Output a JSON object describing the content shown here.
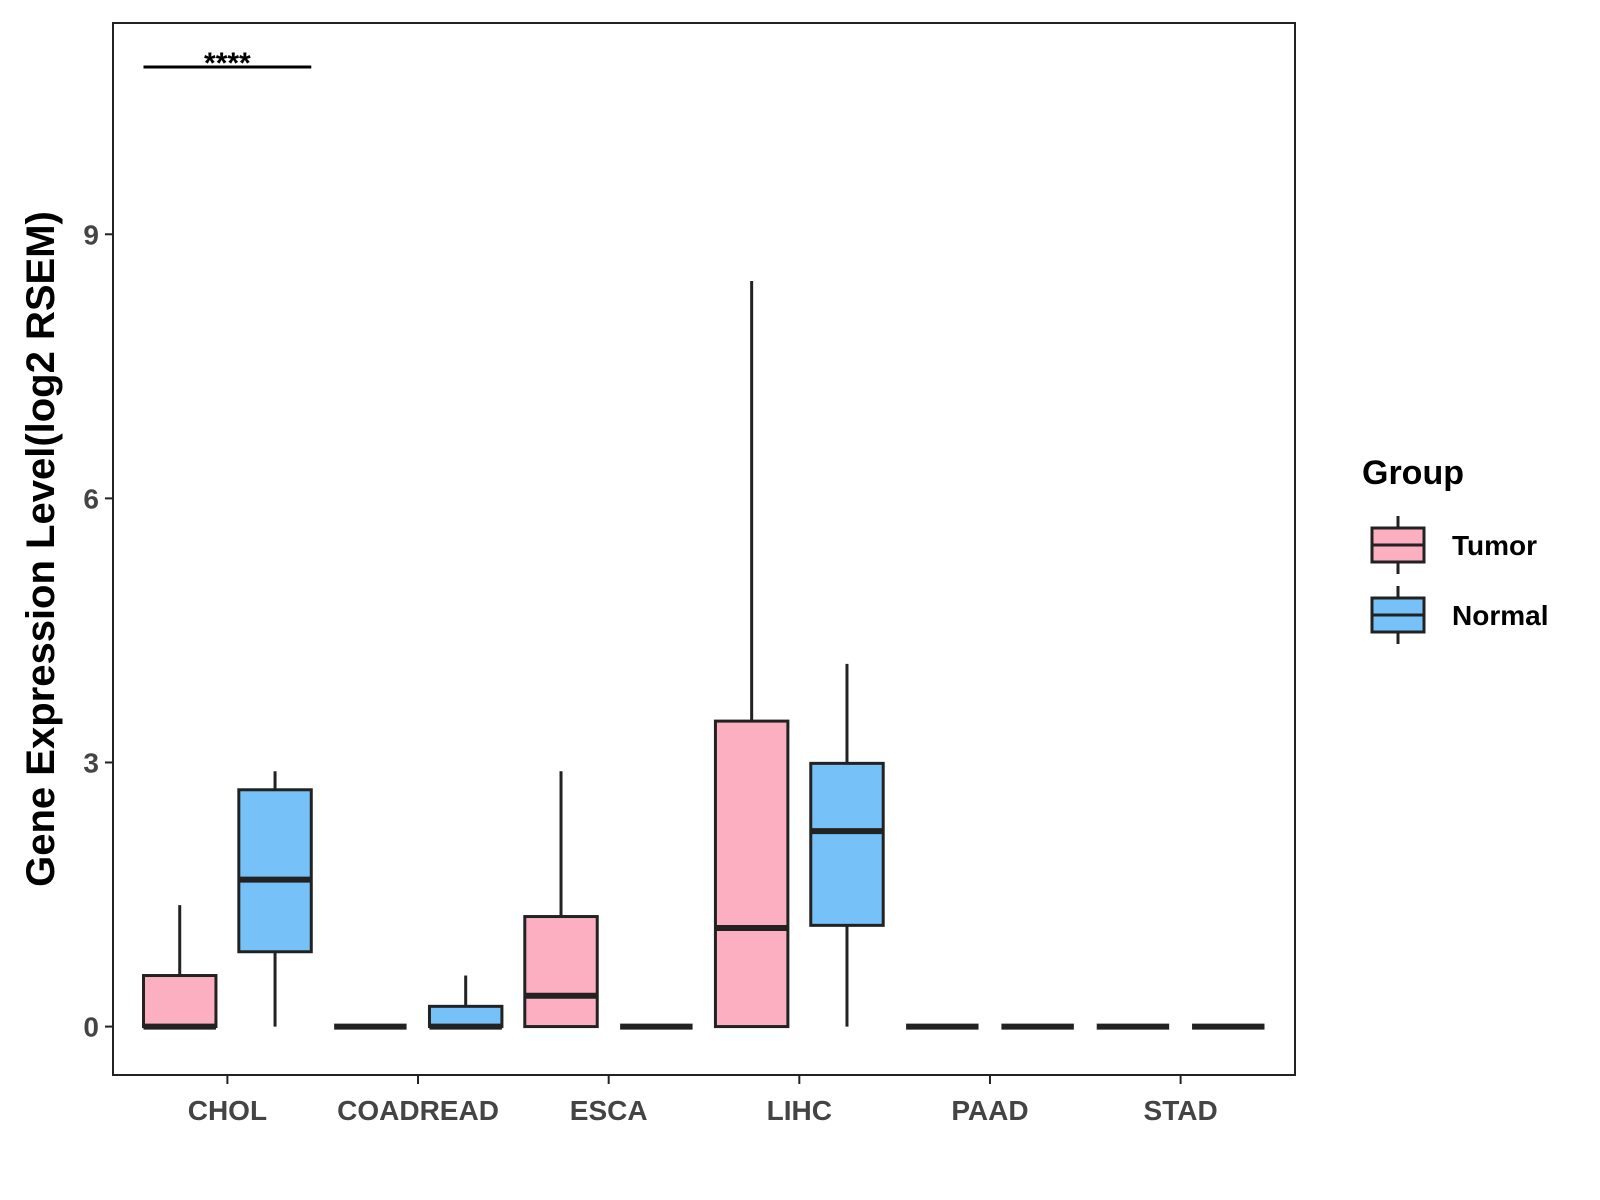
{
  "chart_data": {
    "type": "boxplot",
    "title": "",
    "xlabel": "",
    "ylabel": "Gene Expression Level(log2 RSEM)",
    "ylim": [
      -0.55,
      11.4
    ],
    "yticks": [
      0,
      3,
      6,
      9
    ],
    "categories": [
      "CHOL",
      "COADREAD",
      "ESCA",
      "LIHC",
      "PAAD",
      "STAD"
    ],
    "legend": {
      "title": "Group",
      "position": "right"
    },
    "colors": {
      "Tumor": "#FBAFC0",
      "Normal": "#76C1F8",
      "stroke": "#222222"
    },
    "series": [
      {
        "name": "Tumor",
        "boxes": [
          {
            "whisker_low": 0,
            "q1": 0,
            "median": 0,
            "q3": 0.58,
            "whisker_high": 1.38
          },
          {
            "whisker_low": 0,
            "q1": 0,
            "median": 0,
            "q3": 0,
            "whisker_high": 0
          },
          {
            "whisker_low": 0,
            "q1": 0,
            "median": 0.35,
            "q3": 1.25,
            "whisker_high": 2.9
          },
          {
            "whisker_low": 0,
            "q1": 0,
            "median": 1.12,
            "q3": 3.47,
            "whisker_high": 8.47
          },
          {
            "whisker_low": 0,
            "q1": 0,
            "median": 0,
            "q3": 0,
            "whisker_high": 0
          },
          {
            "whisker_low": 0,
            "q1": 0,
            "median": 0,
            "q3": 0,
            "whisker_high": 0
          }
        ]
      },
      {
        "name": "Normal",
        "boxes": [
          {
            "whisker_low": 0,
            "q1": 0.85,
            "median": 1.67,
            "q3": 2.69,
            "whisker_high": 2.9
          },
          {
            "whisker_low": 0,
            "q1": 0,
            "median": 0,
            "q3": 0.23,
            "whisker_high": 0.58
          },
          {
            "whisker_low": 0,
            "q1": 0,
            "median": 0,
            "q3": 0,
            "whisker_high": 0
          },
          {
            "whisker_low": 0,
            "q1": 1.15,
            "median": 2.22,
            "q3": 2.99,
            "whisker_high": 4.12
          },
          {
            "whisker_low": 0,
            "q1": 0,
            "median": 0,
            "q3": 0,
            "whisker_high": 0
          },
          {
            "whisker_low": 0,
            "q1": 0,
            "median": 0,
            "q3": 0,
            "whisker_high": 0
          }
        ]
      }
    ],
    "annotations": [
      {
        "category": "CHOL",
        "text": "****",
        "y": 10.9
      }
    ]
  }
}
